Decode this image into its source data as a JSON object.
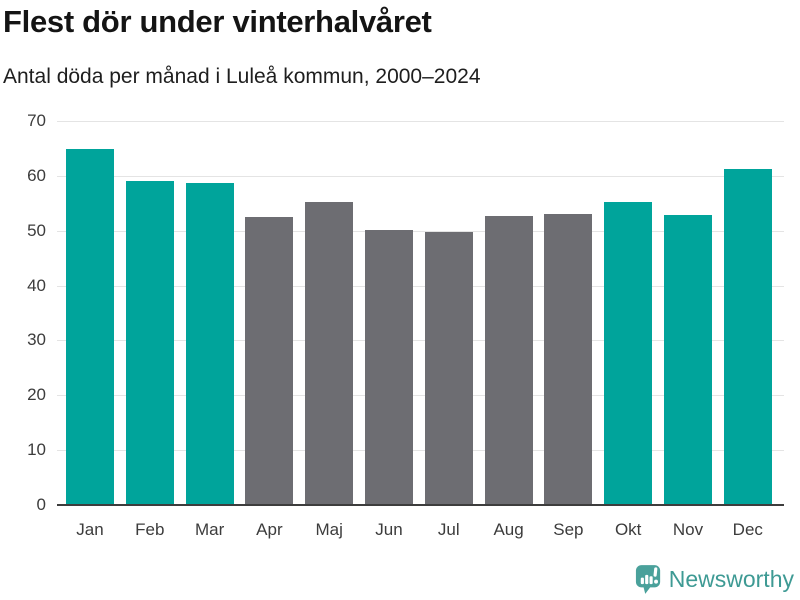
{
  "chart_data": {
    "type": "bar",
    "title": "Flest dör under vinterhalvåret",
    "subtitle": "Antal döda per månad i Luleå kommun, 2000–2024",
    "categories": [
      "Jan",
      "Feb",
      "Mar",
      "Apr",
      "Maj",
      "Jun",
      "Jul",
      "Aug",
      "Sep",
      "Okt",
      "Nov",
      "Dec"
    ],
    "values": [
      64.8,
      58.8,
      58.6,
      52.4,
      55.1,
      50.0,
      49.6,
      52.5,
      52.9,
      55.1,
      52.7,
      61.0
    ],
    "highlight_categories": [
      "Jan",
      "Feb",
      "Mar",
      "Okt",
      "Nov",
      "Dec"
    ],
    "palette": {
      "highlight": "#00a49b",
      "base": "#6d6d72",
      "gridline": "#e4e4e4",
      "axis_line": "#3d3d3d",
      "tick_text": "#3c3c3c"
    },
    "xlabel": "",
    "ylabel": "",
    "ylim": [
      0,
      70
    ],
    "yticks": [
      0,
      10,
      20,
      30,
      40,
      50,
      60,
      70
    ],
    "grid": true,
    "legend_position": "none"
  },
  "footer": {
    "brand": "Newsworthy",
    "brand_color": "#3e9a94",
    "logo_color": "#4aa19b",
    "logo_icon": "bar-chart-speech-bubble-icon"
  }
}
